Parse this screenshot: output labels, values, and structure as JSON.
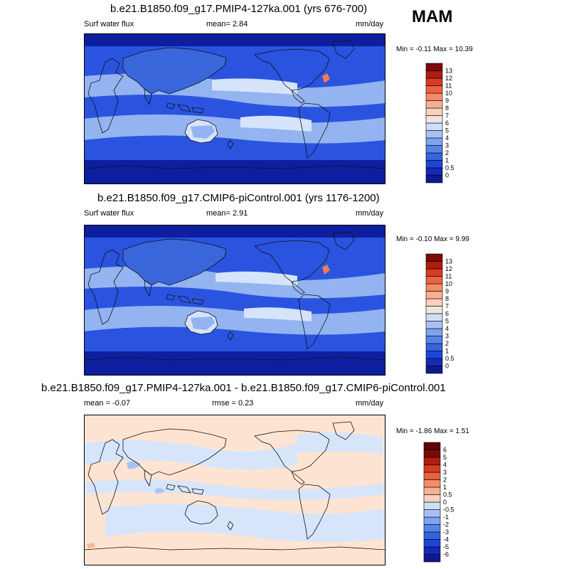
{
  "season": "MAM",
  "panels": [
    {
      "title": "b.e21.B1850.f09_g17.PMIP4-127ka.001 (yrs 676-700)",
      "left_label": "Surf water flux",
      "center_label": "mean=   2.84",
      "units": "mm/day",
      "minmax": "Min =  -0.11 Max =  10.39",
      "levels": [
        "0",
        "0.5",
        "1",
        "2",
        "3",
        "4",
        "5",
        "6",
        "7",
        "8",
        "9",
        "10",
        "11",
        "12",
        "13"
      ],
      "colors": {
        "ocean_deep": "#0d1f9e",
        "ocean_mid": "#2a54df",
        "ocean_light": "#4f7de9",
        "band": "#93b4f0",
        "band_light": "#d6e4fb",
        "land": "#3a66dc",
        "hot": "#f27b4e"
      }
    },
    {
      "title": "b.e21.B1850.f09_g17.CMIP6-piControl.001 (yrs 1176-1200)",
      "left_label": "Surf water flux",
      "center_label": "mean=   2.91",
      "units": "mm/day",
      "minmax": "Min =  -0.10 Max =   9.99",
      "levels": [
        "0",
        "0.5",
        "1",
        "2",
        "3",
        "4",
        "5",
        "6",
        "7",
        "8",
        "9",
        "10",
        "11",
        "12",
        "13"
      ],
      "colors": {
        "ocean_deep": "#0d1f9e",
        "ocean_mid": "#2a54df",
        "ocean_light": "#4f7de9",
        "band": "#93b4f0",
        "band_light": "#d6e4fb",
        "land": "#3a66dc",
        "hot": "#f27b4e"
      }
    },
    {
      "title": "b.e21.B1850.f09_g17.PMIP4-127ka.001 - b.e21.B1850.f09_g17.CMIP6-piControl.001",
      "left_label": "mean =  -0.07",
      "center_label": "rmse =   0.23",
      "units": "mm/day",
      "minmax": "Min =  -1.86 Max =   1.51",
      "levels": [
        "-6",
        "-5",
        "-4",
        "-3",
        "-2",
        "-1",
        "-0.5",
        "0",
        "0.5",
        "1",
        "2",
        "3",
        "4",
        "5",
        "6"
      ],
      "colors": {
        "base": "#fde4d2",
        "neg": "#d7e5fb",
        "neg_strong": "#a9c4f4",
        "pos": "#f6b99a"
      }
    }
  ],
  "colorbar": {
    "abs_colors": [
      "#0d1a8e",
      "#1529b8",
      "#1f45d6",
      "#3563e2",
      "#5584e8",
      "#7ea3ef",
      "#a8c1f4",
      "#d0dff8",
      "#ede5e0",
      "#fbd0bc",
      "#f8b092",
      "#f48c68",
      "#ec6240",
      "#d83a22",
      "#b01c0e",
      "#7e0a04"
    ],
    "diff_colors": [
      "#0d1a8e",
      "#1529b8",
      "#1f45d6",
      "#3563e2",
      "#5584e8",
      "#7ea3ef",
      "#a8c1f4",
      "#d0dff8",
      "#fbd0bc",
      "#f8b092",
      "#f48c68",
      "#ec6240",
      "#d83a22",
      "#b01c0e",
      "#7e0a04",
      "#5e0602"
    ]
  }
}
